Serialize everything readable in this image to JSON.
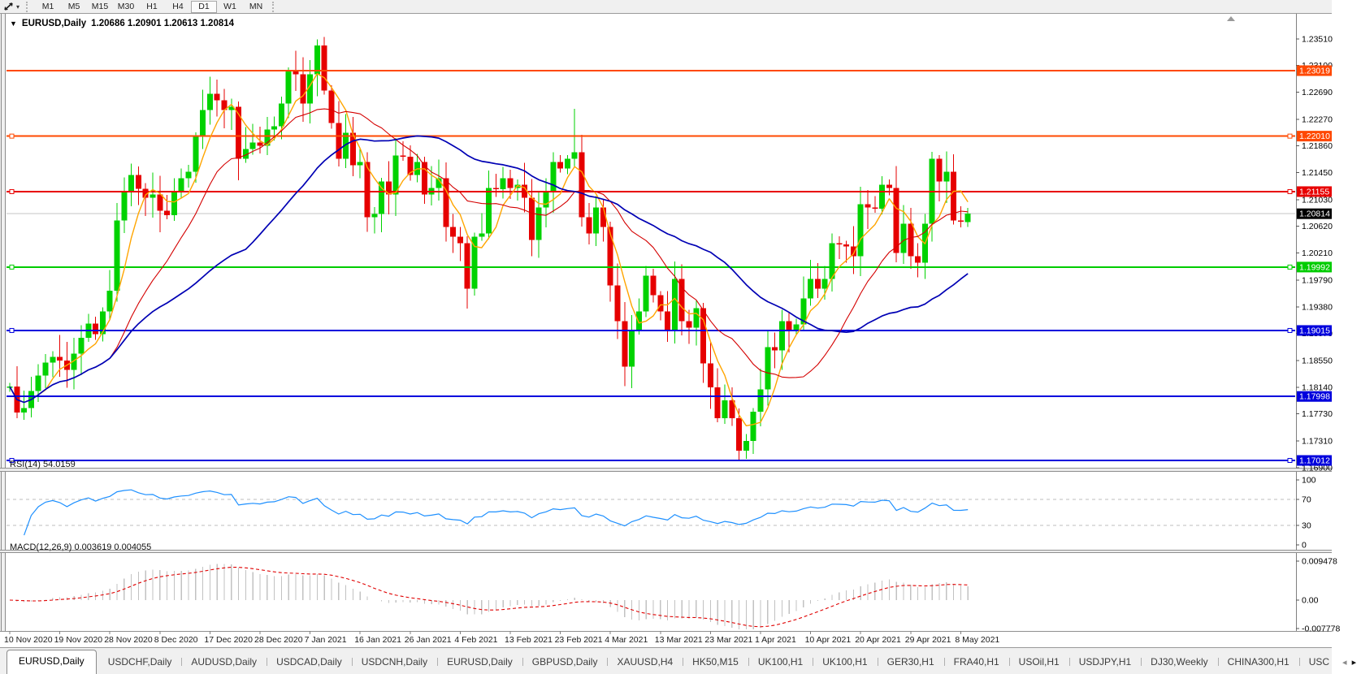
{
  "toolbar": {
    "timeframes": [
      "M1",
      "M5",
      "M15",
      "M30",
      "H1",
      "H4",
      "D1",
      "W1",
      "MN"
    ],
    "active_timeframe": "D1"
  },
  "chart": {
    "title_symbol": "EURUSD,Daily",
    "ohlc_text": "1.20686 1.20901 1.20613 1.20814"
  },
  "y_axis": {
    "ticks": [
      "1.23510",
      "1.23100",
      "1.22690",
      "1.22270",
      "1.21860",
      "1.21450",
      "1.21030",
      "1.20620",
      "1.20210",
      "1.19790",
      "1.19380",
      "1.18970",
      "1.18550",
      "1.18140",
      "1.17730",
      "1.17310",
      "1.16900"
    ]
  },
  "x_axis": {
    "dates": [
      "10 Nov 2020",
      "19 Nov 2020",
      "28 Nov 2020",
      "8 Dec 2020",
      "17 Dec 2020",
      "28 Dec 2020",
      "7 Jan 2021",
      "16 Jan 2021",
      "26 Jan 2021",
      "4 Feb 2021",
      "13 Feb 2021",
      "23 Feb 2021",
      "4 Mar 2021",
      "13 Mar 2021",
      "23 Mar 2021",
      "1 Apr 2021",
      "10 Apr 2021",
      "20 Apr 2021",
      "29 Apr 2021",
      "8 May 2021"
    ]
  },
  "hlines": [
    {
      "label": "1.23019",
      "value": 1.23019,
      "color": "#ff4800",
      "handles": false
    },
    {
      "label": "1.22010",
      "value": 1.2201,
      "color": "#ff4800",
      "handles": true
    },
    {
      "label": "1.21155",
      "value": 1.21155,
      "color": "#e80000",
      "handles": true
    },
    {
      "label": "1.19992",
      "value": 1.19992,
      "color": "#00cc00",
      "handles": true
    },
    {
      "label": "1.19015",
      "value": 1.19015,
      "color": "#0000dd",
      "handles": true
    },
    {
      "label": "1.17998",
      "value": 1.17998,
      "color": "#0000dd",
      "handles": false
    },
    {
      "label": "1.17012",
      "value": 1.17012,
      "color": "#0000dd",
      "handles": true
    }
  ],
  "current_price": {
    "label": "1.20814",
    "value": 1.20814,
    "line_color": "#c4c4c4",
    "badge_color": "#000000"
  },
  "indicators": {
    "rsi": {
      "label": "RSI(14) 54.0159",
      "period": 14,
      "color": "#1E90FF",
      "levels": [
        70,
        30
      ],
      "scale_labels": [
        "100",
        "70",
        "30",
        "0"
      ]
    },
    "macd": {
      "label": "MACD(12,26,9) 0.003619 0.004055",
      "fast": 12,
      "slow": 26,
      "signal": 9,
      "hist_color": "#c2c2c2",
      "signal_color": "#e00000",
      "scale_labels": [
        "0.009478",
        "0.00",
        "-0.007778"
      ]
    }
  },
  "chart_data": {
    "type": "candlestick",
    "symbol": "EURUSD",
    "timeframe": "Daily",
    "up_color": "#00d200",
    "down_color": "#e60000",
    "first_open": 1.1813,
    "closes": [
      1.1815,
      1.1775,
      1.1782,
      1.1808,
      1.1832,
      1.1852,
      1.1861,
      1.1855,
      1.1841,
      1.1866,
      1.189,
      1.1912,
      1.1896,
      1.1931,
      1.1963,
      1.2071,
      1.2115,
      1.2141,
      1.212,
      1.2106,
      1.2111,
      1.2086,
      1.2079,
      1.2116,
      1.2136,
      1.2146,
      1.2201,
      1.2241,
      1.2266,
      1.2256,
      1.2241,
      1.2246,
      1.2166,
      1.2181,
      1.2191,
      1.2186,
      1.2211,
      1.2216,
      1.2251,
      1.2301,
      1.2296,
      1.2251,
      1.2296,
      1.2341,
      1.2271,
      1.2221,
      1.2166,
      1.2206,
      1.2156,
      1.2161,
      1.2076,
      1.2081,
      1.2131,
      1.2111,
      1.2171,
      1.2169,
      1.2141,
      1.2161,
      1.2111,
      1.2121,
      1.2136,
      1.2061,
      1.2046,
      1.2036,
      1.1966,
      1.2046,
      1.2051,
      1.2121,
      1.2119,
      1.2136,
      1.2121,
      1.2126,
      1.2106,
      1.2041,
      1.2091,
      1.2116,
      1.2161,
      1.2151,
      1.2166,
      1.2176,
      1.2076,
      1.2051,
      1.2091,
      1.2061,
      1.1971,
      1.1916,
      1.1846,
      1.1901,
      1.1931,
      1.1986,
      1.1956,
      1.1931,
      1.1901,
      1.1981,
      1.1916,
      1.1906,
      1.1936,
      1.1851,
      1.1814,
      1.1766,
      1.1794,
      1.1766,
      1.1716,
      1.1731,
      1.1776,
      1.1811,
      1.1876,
      1.1871,
      1.1916,
      1.1901,
      1.1911,
      1.1951,
      1.1981,
      1.1966,
      1.1981,
      1.2036,
      1.2034,
      1.2031,
      1.2016,
      1.2096,
      1.2091,
      1.2089,
      1.2126,
      1.2121,
      1.2021,
      1.2066,
      1.2016,
      1.2006,
      1.2066,
      1.2166,
      1.2131,
      1.2146,
      1.2071,
      1.2069,
      1.20814
    ],
    "specials": {
      "43": {
        "h": 1.235
      },
      "65": {
        "l": 1.1955
      },
      "79": {
        "h": 1.2243
      },
      "103": {
        "l": 1.1704
      },
      "134": {
        "o": 1.20686,
        "h": 1.20901,
        "l": 1.20613,
        "c": 1.20814
      }
    },
    "moving_averages": [
      {
        "period": 5,
        "color": "#ffa500",
        "width": 1.4
      },
      {
        "period": 15,
        "color": "#d40000",
        "width": 1.1
      },
      {
        "period": 34,
        "color": "#0000b4",
        "width": 1.7
      }
    ]
  },
  "tabs": [
    {
      "label": "EURUSD,Daily",
      "active": true
    },
    {
      "label": "USDCHF,Daily"
    },
    {
      "label": "AUDUSD,Daily"
    },
    {
      "label": "USDCAD,Daily"
    },
    {
      "label": "USDCNH,Daily"
    },
    {
      "label": "EURUSD,Daily"
    },
    {
      "label": "GBPUSD,Daily"
    },
    {
      "label": "XAUUSD,H4"
    },
    {
      "label": "HK50,M15"
    },
    {
      "label": "UK100,H1"
    },
    {
      "label": "UK100,H1"
    },
    {
      "label": "GER30,H1"
    },
    {
      "label": "FRA40,H1"
    },
    {
      "label": "USOil,H1"
    },
    {
      "label": "USDJPY,H1"
    },
    {
      "label": "DJ30,Weekly"
    },
    {
      "label": "CHINA300,H1"
    },
    {
      "label": "USC"
    }
  ]
}
